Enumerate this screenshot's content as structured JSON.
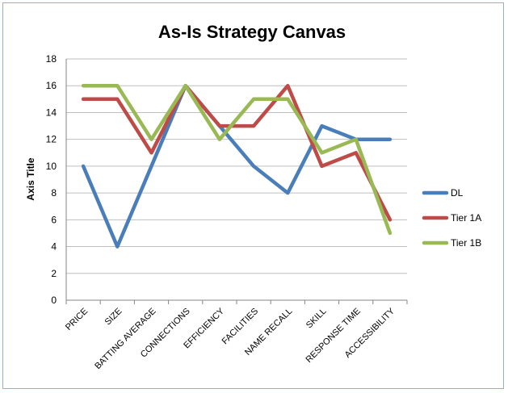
{
  "chart_data": {
    "type": "line",
    "title": "As-Is Strategy Canvas",
    "ylabel": "Axis Title",
    "xlabel": "",
    "ylim": [
      0,
      18
    ],
    "yticks": [
      0,
      2,
      4,
      6,
      8,
      10,
      12,
      14,
      16,
      18
    ],
    "categories": [
      "PRICE",
      "SIZE",
      "BATTING AVERAGE",
      "CONNECTIONS",
      "EFFICIENCY",
      "FACILITIES",
      "NAME RECALL",
      "SKILL",
      "RESPONSE TIME",
      "ACCESSIBILITY"
    ],
    "grid": true,
    "legend_position": "right",
    "series": [
      {
        "name": "DL",
        "color": "#4a7ebb",
        "values": [
          10,
          4,
          10,
          16,
          13,
          10,
          8,
          13,
          12,
          12
        ]
      },
      {
        "name": "Tier 1A",
        "color": "#be4b48",
        "values": [
          15,
          15,
          11,
          16,
          13,
          13,
          16,
          10,
          11,
          6
        ]
      },
      {
        "name": "Tier 1B",
        "color": "#98b954",
        "values": [
          16,
          16,
          12,
          16,
          12,
          15,
          15,
          11,
          12,
          5
        ]
      }
    ]
  }
}
